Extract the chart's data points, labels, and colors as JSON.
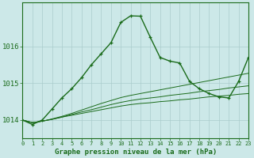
{
  "title": "Graphe pression niveau de la mer (hPa)",
  "background_color": "#cce8e8",
  "grid_color": "#aacccc",
  "line_color": "#1a6b1a",
  "hours": [
    0,
    1,
    2,
    3,
    4,
    5,
    6,
    7,
    8,
    9,
    10,
    11,
    12,
    13,
    14,
    15,
    16,
    17,
    18,
    19,
    20,
    21,
    22,
    23
  ],
  "main_line": [
    1014.0,
    1013.88,
    1014.0,
    1014.3,
    1014.6,
    1014.85,
    1015.15,
    1015.5,
    1015.8,
    1016.1,
    1016.65,
    1016.83,
    1016.82,
    1016.25,
    1015.7,
    1015.6,
    1015.55,
    1015.05,
    1014.85,
    1014.72,
    1014.63,
    1014.6,
    1015.05,
    1015.7
  ],
  "flat_line1": [
    1014.0,
    1013.93,
    1013.97,
    1014.02,
    1014.08,
    1014.13,
    1014.18,
    1014.23,
    1014.28,
    1014.33,
    1014.38,
    1014.42,
    1014.45,
    1014.47,
    1014.5,
    1014.52,
    1014.55,
    1014.57,
    1014.6,
    1014.63,
    1014.65,
    1014.67,
    1014.7,
    1014.72
  ],
  "flat_line2": [
    1014.0,
    1013.93,
    1013.97,
    1014.02,
    1014.08,
    1014.15,
    1014.22,
    1014.28,
    1014.35,
    1014.42,
    1014.48,
    1014.53,
    1014.57,
    1014.6,
    1014.63,
    1014.67,
    1014.7,
    1014.73,
    1014.77,
    1014.8,
    1014.83,
    1014.87,
    1014.9,
    1014.93
  ],
  "flat_line3": [
    1014.0,
    1013.93,
    1013.97,
    1014.03,
    1014.1,
    1014.18,
    1014.27,
    1014.36,
    1014.45,
    1014.53,
    1014.61,
    1014.67,
    1014.72,
    1014.77,
    1014.82,
    1014.87,
    1014.92,
    1014.97,
    1015.02,
    1015.07,
    1015.12,
    1015.17,
    1015.22,
    1015.27
  ],
  "yticks": [
    1014,
    1015,
    1016
  ],
  "ylim": [
    1013.5,
    1017.2
  ],
  "xlim": [
    0,
    23
  ],
  "figw": 3.2,
  "figh": 2.0,
  "dpi": 100
}
